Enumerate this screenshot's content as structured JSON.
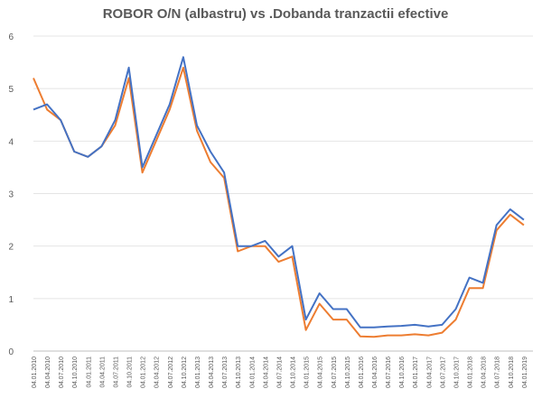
{
  "chart_data": {
    "type": "line",
    "title": "ROBOR O/N (albastru) vs .Dobanda tranzactii efective",
    "categories": [
      "04.01.2010",
      "04.04.2010",
      "04.07.2010",
      "04.10.2010",
      "04.01.2011",
      "04.04.2011",
      "04.07.2011",
      "04.10.2011",
      "04.01.2012",
      "04.04.2012",
      "04.07.2012",
      "04.10.2012",
      "04.01.2013",
      "04.04.2013",
      "04.07.2013",
      "04.10.2013",
      "04.01.2014",
      "04.04.2014",
      "04.07.2014",
      "04.10.2014",
      "04.01.2015",
      "04.04.2015",
      "04.07.2015",
      "04.10.2015",
      "04.01.2016",
      "04.04.2016",
      "04.07.2016",
      "04.10.2016",
      "04.01.2017",
      "04.04.2017",
      "04.07.2017",
      "04.10.2017",
      "04.01.2018",
      "04.04.2018",
      "04.07.2018",
      "04.10.2018",
      "04.01.2019"
    ],
    "series": [
      {
        "color": "#4472c4",
        "values": [
          4.6,
          4.7,
          4.4,
          3.8,
          3.7,
          3.9,
          4.4,
          5.4,
          3.5,
          4.1,
          4.7,
          5.6,
          4.3,
          3.8,
          3.4,
          2.0,
          2.0,
          2.1,
          1.8,
          2.0,
          0.6,
          1.1,
          0.8,
          0.8,
          0.45,
          0.45,
          0.47,
          0.48,
          0.5,
          0.47,
          0.5,
          0.8,
          1.4,
          1.3,
          2.4,
          2.7,
          2.5
        ]
      },
      {
        "color": "#ed7d31",
        "values": [
          5.2,
          4.6,
          4.4,
          3.8,
          3.7,
          3.9,
          4.3,
          5.2,
          3.4,
          4.0,
          4.6,
          5.4,
          4.2,
          3.6,
          3.3,
          1.9,
          2.0,
          2.0,
          1.7,
          1.8,
          0.4,
          0.9,
          0.6,
          0.6,
          0.28,
          0.27,
          0.3,
          0.3,
          0.32,
          0.3,
          0.35,
          0.6,
          1.2,
          1.2,
          2.3,
          2.6,
          2.4
        ]
      }
    ],
    "ylim": [
      0,
      6
    ],
    "yticks": [
      0,
      1,
      2,
      3,
      4,
      5,
      6
    ],
    "grid": true
  }
}
